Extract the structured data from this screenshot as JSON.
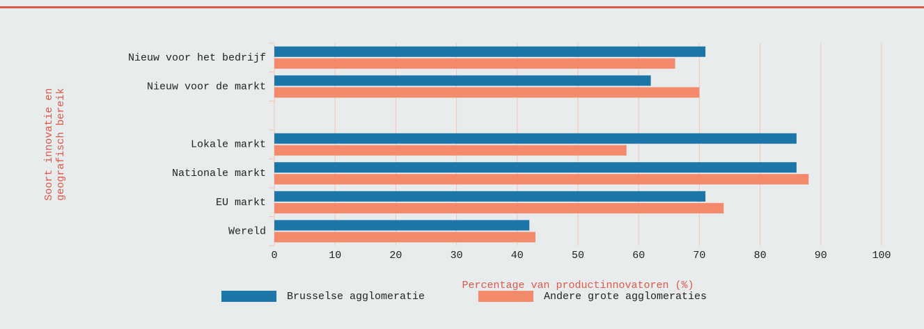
{
  "chart_data": {
    "type": "hbar",
    "xlabel": "Percentage van productinnovatoren (%)",
    "ylabel": [
      "Soort innovatie en",
      "geografisch bereik"
    ],
    "categories": [
      "Nieuw voor het bedrijf",
      "Nieuw voor de markt",
      null,
      "Lokale markt",
      "Nationale markt",
      "EU markt",
      "Wereld"
    ],
    "series": [
      {
        "name": "Brusselse agglomeratie",
        "color": "#1c76a8",
        "values": [
          71,
          62,
          null,
          86,
          86,
          71,
          42
        ]
      },
      {
        "name": "Andere grote agglomeraties",
        "color": "#f4896b",
        "values": [
          66,
          70,
          null,
          58,
          88,
          74,
          43
        ]
      }
    ],
    "xlim": [
      0,
      100
    ],
    "xticks": [
      0,
      10,
      20,
      30,
      40,
      50,
      60,
      70,
      80,
      90,
      100
    ],
    "grid": true,
    "legend": "bottom"
  }
}
